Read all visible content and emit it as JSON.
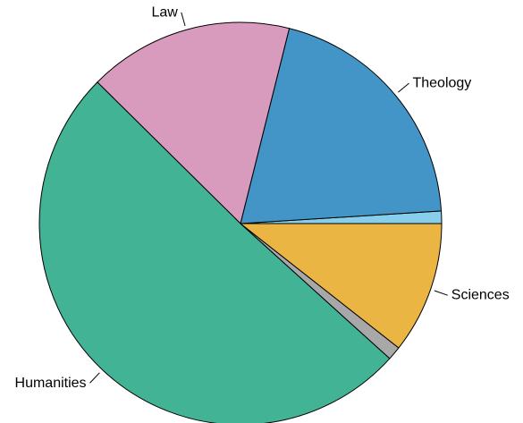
{
  "chart_data": {
    "type": "pie",
    "title": "",
    "start": "right (3 o'clock), counter-clockwise",
    "slices": [
      {
        "label": "",
        "value": 1.0,
        "color": "#87CEEB"
      },
      {
        "label": "Theology",
        "value": 20.1,
        "color": "#4394C7"
      },
      {
        "label": "Law",
        "value": 16.5,
        "color": "#D89BBE"
      },
      {
        "label": "Humanities",
        "value": 50.7,
        "color": "#42B495"
      },
      {
        "label": "",
        "value": 1.1,
        "color": "#A8A8A8"
      },
      {
        "label": "Sciences",
        "value": 10.6,
        "color": "#EBB543"
      }
    ]
  }
}
